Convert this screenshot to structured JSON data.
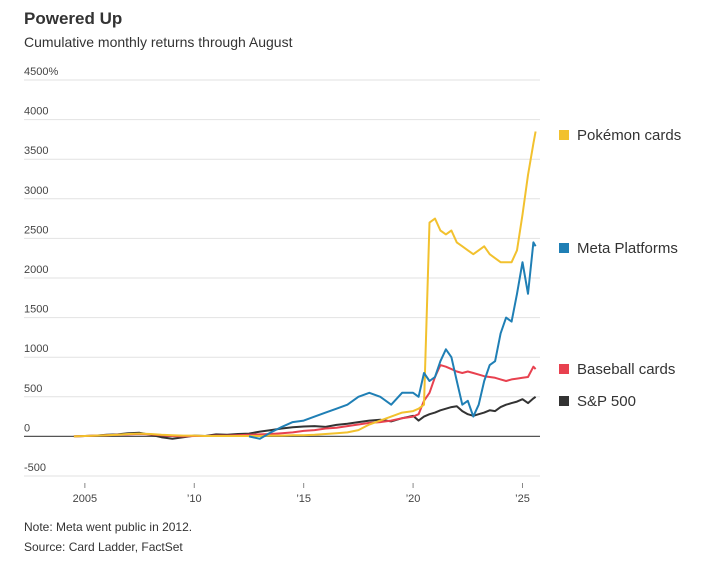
{
  "chart_data": {
    "type": "line",
    "title": "Powered Up",
    "subtitle": "Cumulative monthly returns through August",
    "notes": [
      "Note: Meta went public in 2012.",
      "Source: Card Ladder, FactSet"
    ],
    "x": [
      2004.5,
      2005,
      2005.5,
      2006,
      2006.5,
      2007,
      2007.5,
      2008,
      2008.5,
      2009,
      2009.5,
      2010,
      2010.5,
      2011,
      2011.5,
      2012,
      2012.5,
      2013,
      2013.5,
      2014,
      2014.5,
      2015,
      2015.5,
      2016,
      2016.5,
      2017,
      2017.5,
      2018,
      2018.5,
      2019,
      2019.5,
      2020,
      2020.25,
      2020.5,
      2020.75,
      2021,
      2021.25,
      2021.5,
      2021.75,
      2022,
      2022.25,
      2022.5,
      2022.75,
      2023,
      2023.25,
      2023.5,
      2023.75,
      2024,
      2024.25,
      2024.5,
      2024.75,
      2025,
      2025.25,
      2025.5,
      2025.6
    ],
    "series": [
      {
        "name": "Pokémon cards",
        "color": "#f2c12e",
        "values": [
          0,
          5,
          10,
          15,
          20,
          30,
          35,
          30,
          20,
          15,
          10,
          10,
          5,
          5,
          5,
          5,
          5,
          5,
          10,
          10,
          15,
          15,
          20,
          30,
          40,
          50,
          80,
          150,
          200,
          250,
          300,
          320,
          350,
          400,
          2700,
          2750,
          2600,
          2550,
          2600,
          2450,
          2400,
          2350,
          2300,
          2350,
          2400,
          2300,
          2250,
          2200,
          2200,
          2200,
          2350,
          2800,
          3300,
          3700,
          3850
        ]
      },
      {
        "name": "Meta Platforms",
        "color": "#1f7fb5",
        "values": [
          null,
          null,
          null,
          null,
          null,
          null,
          null,
          null,
          null,
          null,
          null,
          null,
          null,
          null,
          null,
          null,
          0,
          -30,
          50,
          120,
          180,
          200,
          250,
          300,
          350,
          400,
          500,
          550,
          500,
          400,
          550,
          550,
          500,
          800,
          700,
          750,
          950,
          1100,
          1000,
          700,
          400,
          450,
          250,
          400,
          700,
          900,
          950,
          1300,
          1500,
          1450,
          1800,
          2200,
          1800,
          2450,
          2400
        ]
      },
      {
        "name": "Baseball cards",
        "color": "#e8414f",
        "values": [
          0,
          5,
          10,
          15,
          20,
          25,
          30,
          25,
          15,
          5,
          0,
          5,
          5,
          10,
          10,
          15,
          20,
          25,
          30,
          40,
          50,
          70,
          80,
          100,
          110,
          130,
          150,
          170,
          180,
          200,
          230,
          250,
          280,
          450,
          550,
          750,
          900,
          880,
          850,
          820,
          800,
          820,
          800,
          780,
          760,
          750,
          740,
          720,
          700,
          720,
          730,
          740,
          750,
          880,
          850
        ]
      },
      {
        "name": "S&P 500",
        "color": "#333333",
        "values": [
          0,
          5,
          10,
          20,
          25,
          40,
          45,
          20,
          -10,
          -30,
          -10,
          10,
          5,
          25,
          20,
          30,
          35,
          60,
          80,
          100,
          115,
          125,
          130,
          120,
          145,
          160,
          180,
          200,
          210,
          190,
          230,
          260,
          200,
          250,
          280,
          300,
          330,
          350,
          370,
          380,
          320,
          280,
          260,
          280,
          300,
          330,
          320,
          370,
          400,
          420,
          440,
          470,
          420,
          480,
          500
        ]
      }
    ],
    "xlim": [
      2002.95,
      2025.8
    ],
    "xticks": [
      {
        "value": 2005,
        "label": "2005"
      },
      {
        "value": 2010,
        "label": "’10"
      },
      {
        "value": 2015,
        "label": "’15"
      },
      {
        "value": 2020,
        "label": "’20"
      },
      {
        "value": 2025,
        "label": "’25"
      }
    ],
    "ylim": [
      -500,
      4500
    ],
    "yticks": [
      -500,
      0,
      500,
      1000,
      1500,
      2000,
      2500,
      3000,
      3500,
      4000,
      {
        "value": 4500,
        "label": "4500%"
      }
    ],
    "grid": true
  }
}
